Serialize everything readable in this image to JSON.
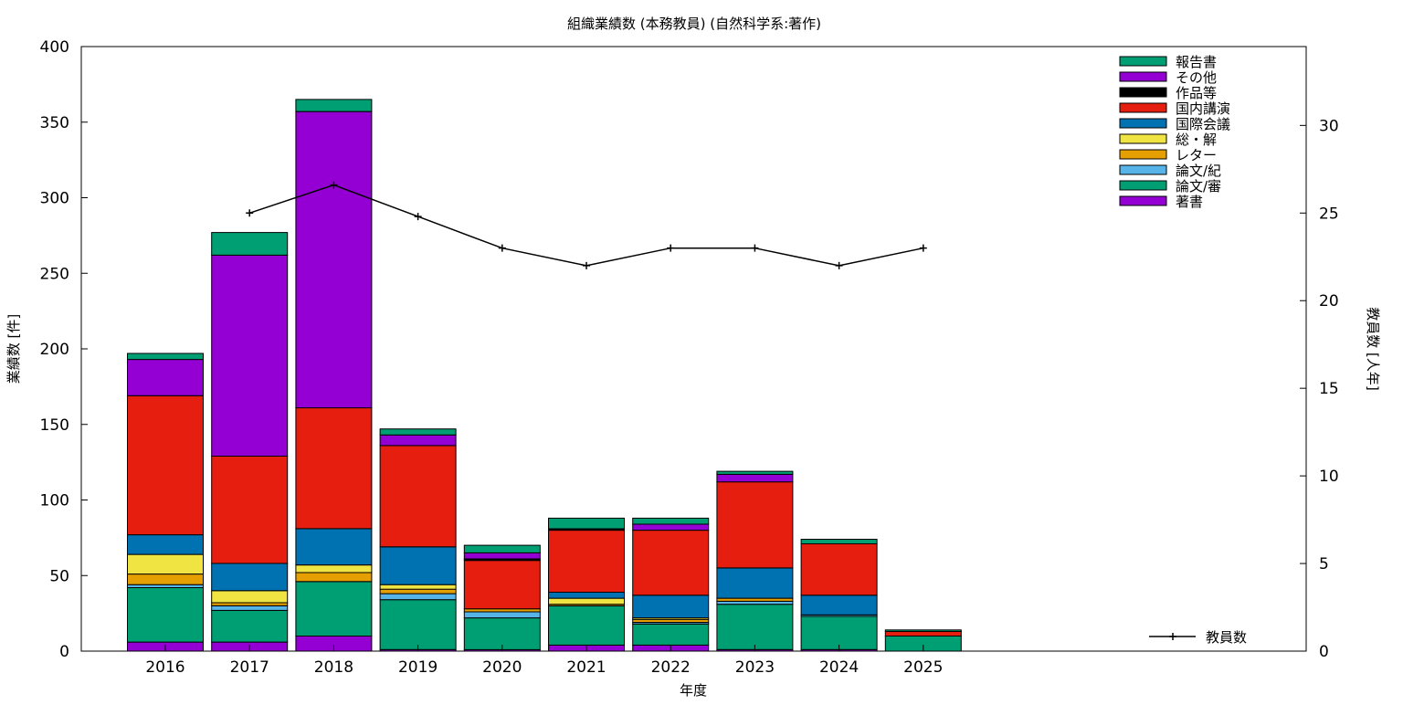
{
  "chart_data": {
    "type": "bar",
    "stacked": true,
    "title": "組織業績数 (本務教員) (自然科学系:著作)",
    "xlabel": "年度",
    "ylabel": "業績数 [件]",
    "y2label": "教員数 [人年]",
    "categories": [
      "2016",
      "2017",
      "2018",
      "2019",
      "2020",
      "2021",
      "2022",
      "2023",
      "2024",
      "2025"
    ],
    "ylim": [
      0,
      400
    ],
    "yticks": [
      0,
      50,
      100,
      150,
      200,
      250,
      300,
      350,
      400
    ],
    "y2lim": [
      0,
      34.5
    ],
    "y2ticks": [
      0,
      5,
      10,
      15,
      20,
      25,
      30
    ],
    "grid": false,
    "legend_position": "top-right",
    "series": [
      {
        "name": "著書",
        "color": "#9400d3",
        "values": [
          6,
          6,
          10,
          1,
          1,
          4,
          4,
          1,
          1,
          0
        ]
      },
      {
        "name": "論文/審",
        "color": "#009e73",
        "values": [
          36,
          21,
          36,
          33,
          21,
          26,
          14,
          30,
          22,
          10
        ]
      },
      {
        "name": "論文/紀",
        "color": "#56b4e9",
        "values": [
          2,
          3,
          0,
          4,
          4,
          0,
          1,
          2,
          1,
          0
        ]
      },
      {
        "name": "レター",
        "color": "#e69f00",
        "values": [
          7,
          2,
          6,
          3,
          2,
          1,
          2,
          2,
          0,
          0
        ]
      },
      {
        "name": "総・解",
        "color": "#f0e442",
        "values": [
          13,
          8,
          5,
          3,
          0,
          4,
          1,
          0,
          0,
          0
        ]
      },
      {
        "name": "国際会議",
        "color": "#0072b2",
        "values": [
          13,
          18,
          24,
          25,
          0,
          4,
          15,
          20,
          13,
          0
        ]
      },
      {
        "name": "国内講演",
        "color": "#e51e10",
        "values": [
          92,
          71,
          80,
          67,
          32,
          41,
          43,
          57,
          34,
          3
        ]
      },
      {
        "name": "作品等",
        "color": "#000000",
        "values": [
          0,
          0,
          0,
          0,
          1,
          1,
          0,
          0,
          0,
          0
        ]
      },
      {
        "name": "その他",
        "color": "#9400d3",
        "values": [
          24,
          133,
          196,
          7,
          4,
          0,
          4,
          5,
          0,
          0
        ]
      },
      {
        "name": "報告書",
        "color": "#009e73",
        "values": [
          4,
          15,
          8,
          4,
          5,
          7,
          4,
          2,
          3,
          1
        ]
      }
    ],
    "line_series": {
      "name": "教員数",
      "color": "#000000",
      "axis": "y2",
      "categories": [
        "2017",
        "2018",
        "2019",
        "2020",
        "2021",
        "2022",
        "2023",
        "2024",
        "2025"
      ],
      "values": [
        25.0,
        26.6,
        24.8,
        23.0,
        22.0,
        23.0,
        23.0,
        22.0,
        23.0
      ]
    }
  }
}
